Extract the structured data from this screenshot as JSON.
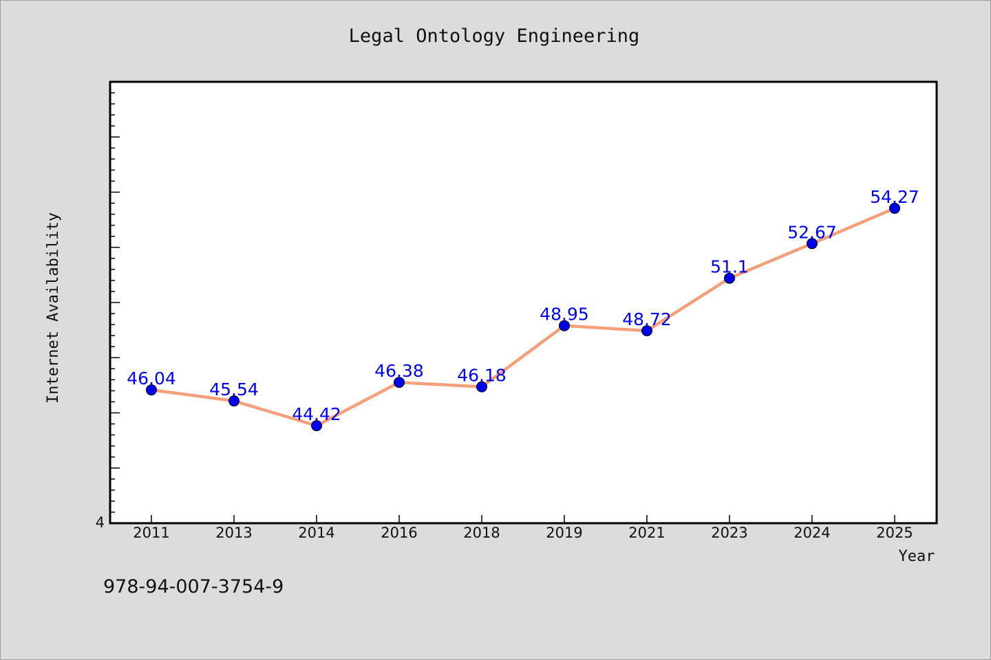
{
  "chart_data": {
    "type": "line",
    "title": "Legal Ontology Engineering",
    "xlabel": "Year",
    "ylabel": "Internet Availability",
    "categories": [
      "2011",
      "2013",
      "2014",
      "2016",
      "2018",
      "2019",
      "2021",
      "2023",
      "2024",
      "2025"
    ],
    "values": [
      46.04,
      45.54,
      44.42,
      46.38,
      46.18,
      48.95,
      48.72,
      51.1,
      52.67,
      54.27
    ],
    "data_labels": [
      "46.04",
      "45.54",
      "44.42",
      "46.38",
      "46.18",
      "48.95",
      "48.72",
      "51.1",
      "52.67",
      "54.27"
    ],
    "y_tick_labels": [
      "4"
    ],
    "ylim": [
      40,
      60
    ],
    "grid": false,
    "line_color": "#f4a07a",
    "marker_color": "#0000ee",
    "label_color": "#0000ee"
  },
  "footer": {
    "isbn": "978-94-007-3754-9"
  }
}
